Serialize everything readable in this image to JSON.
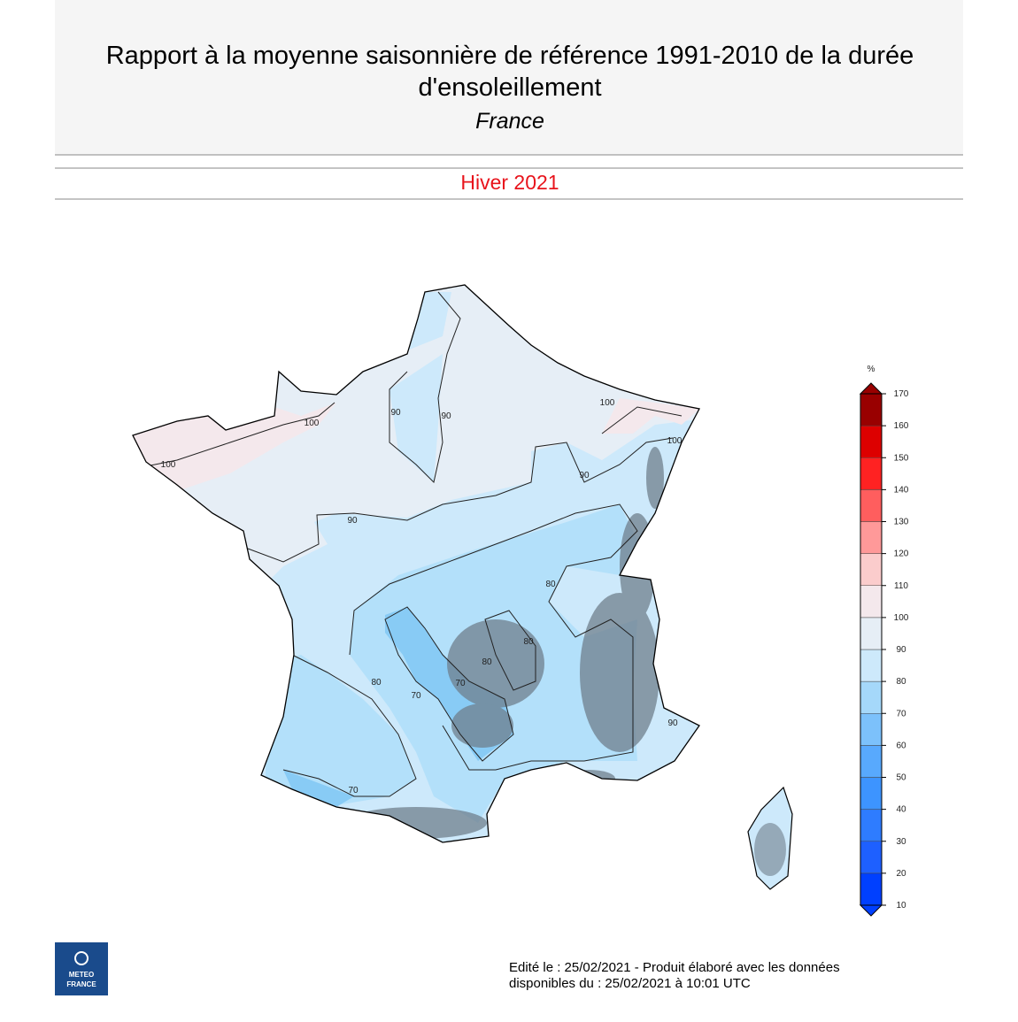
{
  "header": {
    "title_lines": [
      "Rapport à la moyenne saisonnière de référence 1991-2010 de la durée",
      "d'ensoleillement"
    ],
    "region": "France"
  },
  "season": "Hiver 2021",
  "map": {
    "contour_labels": [
      "100",
      "100",
      "90",
      "90",
      "100",
      "100",
      "90",
      "90",
      "80",
      "80",
      "80",
      "70",
      "70",
      "80",
      "70",
      "90"
    ]
  },
  "legend": {
    "unit": "%",
    "ticks": [
      10,
      20,
      30,
      40,
      50,
      60,
      70,
      80,
      90,
      100,
      110,
      120,
      130,
      140,
      150,
      160,
      170
    ],
    "colors": [
      "#0040ff",
      "#1e60ff",
      "#2e7cff",
      "#3d94ff",
      "#58a9fd",
      "#7cc1fb",
      "#a5d8fa",
      "#cde9fb",
      "#e6eef6",
      "#f4e8ec",
      "#fbcccc",
      "#ff9999",
      "#ff5e5e",
      "#ff2222",
      "#dd0000",
      "#990000"
    ]
  },
  "footer": {
    "lines": [
      "Edité le : 25/02/2021 - Produit élaboré avec les données",
      "disponibles du : 25/02/2021 à 10:01 UTC"
    ]
  },
  "logo": {
    "lines": [
      "METEO",
      "FRANCE"
    ]
  }
}
